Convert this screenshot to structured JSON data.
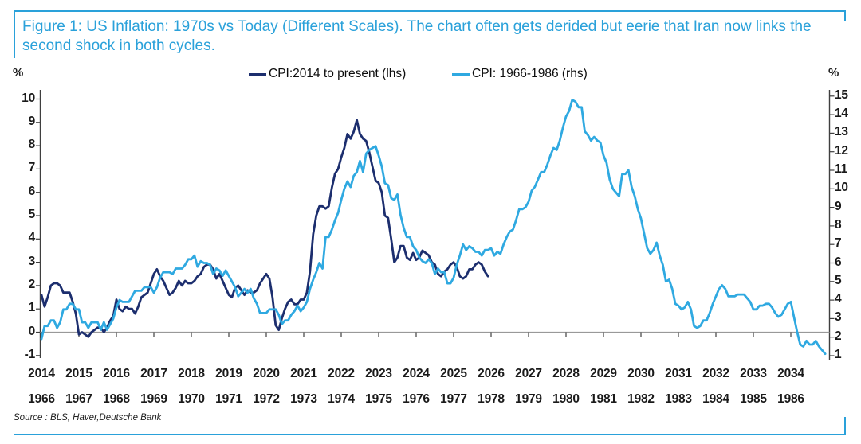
{
  "header": {
    "title_line1": "Figure 1: US Inflation: 1970s vs Today (Different Scales). The chart often gets derided but eerie that Iran now links the",
    "title_line2": "second shock in both cycles."
  },
  "legend": {
    "items": [
      {
        "label": "CPI:2014 to present (lhs)",
        "color": "#1C2E6E"
      },
      {
        "label": "CPI: 1966-1986 (rhs)",
        "color": "#2FA9E1"
      }
    ]
  },
  "footer": {
    "source": "Source : BLS, Haver,Deutsche Bank"
  },
  "colors": {
    "accent_blue": "#2AA1DA",
    "navy_line": "#1C2E6E",
    "light_blue_line": "#2FA9E1",
    "zero_line": "#999999",
    "axis": "#3f3f3f",
    "text": "#1a1a1a"
  },
  "chart_data": {
    "type": "line",
    "title": "Figure 1: US Inflation: 1970s vs Today (Different Scales). The chart often gets derided but eerie that Iran now links the second shock in both cycles.",
    "legend_position": "top",
    "grid": "off",
    "zero_line_left_value": 0,
    "left_axis": {
      "unit": "%",
      "min": -1,
      "max": 10,
      "ticks": [
        10,
        9,
        8,
        7,
        6,
        5,
        4,
        3,
        2,
        1,
        0,
        -1
      ]
    },
    "right_axis": {
      "unit": "%",
      "min": 1,
      "max": 15,
      "ticks": [
        15,
        14,
        13,
        12,
        11,
        10,
        9,
        8,
        7,
        6,
        5,
        4,
        3,
        2,
        1
      ]
    },
    "x_axis": {
      "row1_years": [
        2014,
        2015,
        2016,
        2017,
        2018,
        2019,
        2020,
        2021,
        2022,
        2023,
        2024,
        2025,
        2026,
        2027,
        2028,
        2029,
        2030,
        2031,
        2032,
        2033,
        2034
      ],
      "row2_years": [
        1966,
        1967,
        1968,
        1969,
        1970,
        1971,
        1972,
        1973,
        1974,
        1975,
        1976,
        1977,
        1978,
        1979,
        1980,
        1981,
        1982,
        1983,
        1984,
        1985,
        1986
      ]
    },
    "series": [
      {
        "name": "CPI:2014 to present (lhs)",
        "axis": "left",
        "color": "#1C2E6E",
        "start_year": 2014,
        "frequency": "monthly",
        "values": [
          1.6,
          1.1,
          1.5,
          2.0,
          2.1,
          2.1,
          2.0,
          1.7,
          1.7,
          1.7,
          1.3,
          0.8,
          -0.1,
          0.0,
          -0.1,
          -0.2,
          0.0,
          0.1,
          0.2,
          0.2,
          0.0,
          0.2,
          0.5,
          0.7,
          1.4,
          1.0,
          0.9,
          1.1,
          1.0,
          1.0,
          0.8,
          1.1,
          1.5,
          1.6,
          1.7,
          2.1,
          2.5,
          2.7,
          2.4,
          2.2,
          1.9,
          1.6,
          1.7,
          1.9,
          2.2,
          2.0,
          2.2,
          2.1,
          2.1,
          2.2,
          2.4,
          2.5,
          2.8,
          2.9,
          2.9,
          2.7,
          2.3,
          2.5,
          2.2,
          1.9,
          1.6,
          1.5,
          1.9,
          2.0,
          1.8,
          1.6,
          1.8,
          1.7,
          1.7,
          1.8,
          2.1,
          2.3,
          2.5,
          2.3,
          1.5,
          0.3,
          0.1,
          0.6,
          1.0,
          1.3,
          1.4,
          1.2,
          1.2,
          1.4,
          1.4,
          1.7,
          2.6,
          4.2,
          5.0,
          5.4,
          5.4,
          5.3,
          5.4,
          6.2,
          6.8,
          7.0,
          7.5,
          7.9,
          8.5,
          8.3,
          8.6,
          9.1,
          8.5,
          8.3,
          8.2,
          7.7,
          7.1,
          6.5,
          6.4,
          6.0,
          5.0,
          4.9,
          4.0,
          3.0,
          3.2,
          3.7,
          3.7,
          3.2,
          3.1,
          3.4,
          3.1,
          3.2,
          3.5,
          3.4,
          3.3,
          3.0,
          2.9,
          2.5,
          2.4,
          2.6,
          2.7,
          2.9,
          3.0,
          2.8,
          2.4,
          2.3,
          2.4,
          2.7,
          2.7,
          2.9,
          3.0,
          2.9,
          2.6,
          2.4
        ]
      },
      {
        "name": "CPI: 1966-1986 (rhs)",
        "axis": "right",
        "color": "#2FA9E1",
        "start_year": 1966,
        "frequency": "monthly",
        "values": [
          1.9,
          2.6,
          2.6,
          2.9,
          2.9,
          2.5,
          2.8,
          3.5,
          3.5,
          3.8,
          3.8,
          3.5,
          3.5,
          2.8,
          2.8,
          2.5,
          2.8,
          2.8,
          2.8,
          2.4,
          2.8,
          2.4,
          2.7,
          3.0,
          3.6,
          4.0,
          3.9,
          3.9,
          3.9,
          4.2,
          4.5,
          4.5,
          4.5,
          4.7,
          4.7,
          4.7,
          4.4,
          4.7,
          5.2,
          5.5,
          5.5,
          5.5,
          5.4,
          5.7,
          5.7,
          5.7,
          5.9,
          6.2,
          6.2,
          6.4,
          5.8,
          6.1,
          6.0,
          6.0,
          5.9,
          5.4,
          5.7,
          5.6,
          5.3,
          5.6,
          5.3,
          5.0,
          4.7,
          4.2,
          4.4,
          4.6,
          4.4,
          4.6,
          4.1,
          3.8,
          3.3,
          3.3,
          3.3,
          3.5,
          3.5,
          3.5,
          3.2,
          2.7,
          2.9,
          2.9,
          3.2,
          3.4,
          3.7,
          3.4,
          3.6,
          3.9,
          4.6,
          5.1,
          5.5,
          6.0,
          5.7,
          7.4,
          7.4,
          7.8,
          8.3,
          8.7,
          9.4,
          10.0,
          10.4,
          10.1,
          10.7,
          10.9,
          11.5,
          10.9,
          11.9,
          12.1,
          12.2,
          12.3,
          11.8,
          11.2,
          10.3,
          10.2,
          9.5,
          9.4,
          9.7,
          8.6,
          7.9,
          7.4,
          7.4,
          6.9,
          6.7,
          6.3,
          6.1,
          6.0,
          6.2,
          6.0,
          5.4,
          5.7,
          5.5,
          5.5,
          4.9,
          4.9,
          5.2,
          5.9,
          6.4,
          7.0,
          6.7,
          6.9,
          6.8,
          6.6,
          6.6,
          6.4,
          6.7,
          6.7,
          6.8,
          6.4,
          6.6,
          6.5,
          7.0,
          7.4,
          7.7,
          7.8,
          8.3,
          8.9,
          8.9,
          9.0,
          9.3,
          9.9,
          10.1,
          10.5,
          10.9,
          10.9,
          11.3,
          11.8,
          12.2,
          12.1,
          12.6,
          13.3,
          13.9,
          14.2,
          14.8,
          14.7,
          14.4,
          14.4,
          13.1,
          12.9,
          12.6,
          12.8,
          12.6,
          12.5,
          11.8,
          11.4,
          10.5,
          10.0,
          9.8,
          9.6,
          10.8,
          10.8,
          11.0,
          10.1,
          9.6,
          8.9,
          8.4,
          7.6,
          6.8,
          6.5,
          6.7,
          7.1,
          6.4,
          5.9,
          5.0,
          5.1,
          4.6,
          3.8,
          3.7,
          3.5,
          3.6,
          3.9,
          3.5,
          2.6,
          2.5,
          2.6,
          2.9,
          2.9,
          3.3,
          3.8,
          4.2,
          4.6,
          4.8,
          4.6,
          4.2,
          4.2,
          4.2,
          4.3,
          4.3,
          4.3,
          4.1,
          3.9,
          3.5,
          3.5,
          3.7,
          3.7,
          3.8,
          3.8,
          3.6,
          3.3,
          3.1,
          3.2,
          3.5,
          3.8,
          3.9,
          3.1,
          2.3,
          1.6,
          1.5,
          1.8,
          1.6,
          1.6,
          1.8,
          1.5,
          1.3,
          1.1
        ]
      }
    ]
  }
}
